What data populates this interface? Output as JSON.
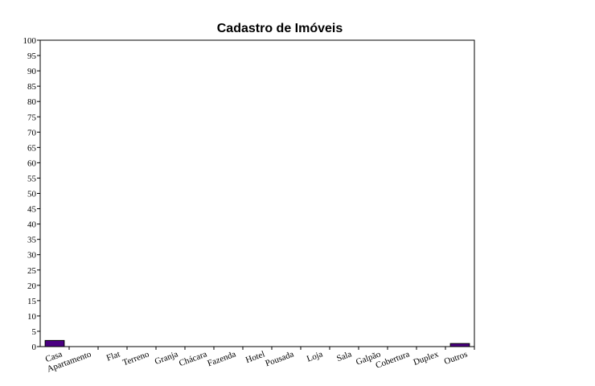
{
  "chart_data": {
    "type": "bar",
    "title": "Cadastro de Imóveis",
    "xlabel": "",
    "ylabel": "",
    "ylim": [
      0,
      100
    ],
    "ytick_step": 5,
    "categories": [
      "Casa",
      "Apartamento",
      "Flat",
      "Terreno",
      "Granja",
      "Chácara",
      "Fazenda",
      "Hotel",
      "Pousada",
      "Loja",
      "Sala",
      "Galpão",
      "Cobertura",
      "Duplex",
      "Outros"
    ],
    "values": [
      2,
      0,
      0,
      0,
      0,
      0,
      0,
      0,
      0,
      0,
      0,
      0,
      0,
      0,
      1
    ],
    "bar_color": "#4b0082",
    "grid": false,
    "legend": "none"
  }
}
